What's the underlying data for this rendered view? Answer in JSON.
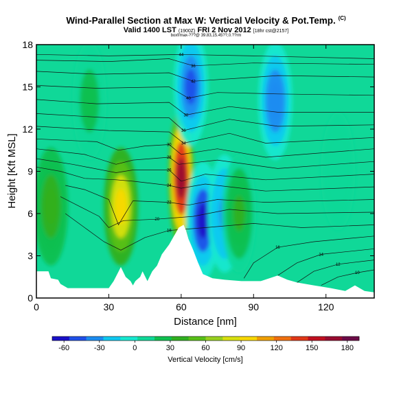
{
  "chart_data": {
    "type": "heatmap",
    "title": "Wind-Parallel Section at Max W: Vertical Velocity & Pot.Temp.",
    "title_mark": "(C)",
    "subtitle": "Valid 1400 LST",
    "subtitle_small_1": "(1900Z)",
    "subtitle_date": "FRI 2 Nov 2012",
    "subtitle_small_2": "[18hr cst@2157]",
    "credit": "boxf/max-???@ 39.83,15.45??,0.??rm",
    "xlabel": "Distance [nm]",
    "ylabel": "Height [Kft MSL]",
    "xlim": [
      0,
      140
    ],
    "ylim": [
      0,
      18
    ],
    "x_ticks": [
      0,
      30,
      60,
      90,
      120
    ],
    "y_ticks": [
      0,
      3,
      6,
      9,
      12,
      15,
      18
    ],
    "colorbar": {
      "label": "Vertical Velocity [cm/s]",
      "range": [
        -70,
        190
      ],
      "ticks": [
        -60,
        -30,
        0,
        30,
        60,
        90,
        120,
        150,
        180
      ],
      "colors": [
        "#1a10c8",
        "#2050e8",
        "#1c8cf0",
        "#10c8f0",
        "#18e8d0",
        "#10d898",
        "#10c050",
        "#30b020",
        "#58c018",
        "#98d020",
        "#d8e010",
        "#f8d800",
        "#f0a000",
        "#f07010",
        "#e03818",
        "#c01020",
        "#980c30",
        "#6c0c48"
      ]
    },
    "field_cells": [
      {
        "x": 6,
        "z": 6.5,
        "w": 40
      },
      {
        "x": 35,
        "z": 6.5,
        "w": 100
      },
      {
        "x": 60,
        "z": 8.5,
        "w": 175
      },
      {
        "x": 69,
        "z": 5.5,
        "w": -60
      },
      {
        "x": 78,
        "z": 6.0,
        "w": -35
      },
      {
        "x": 64,
        "z": 15.0,
        "w": -55
      },
      {
        "x": 84,
        "z": 6.0,
        "w": 35
      },
      {
        "x": 99,
        "z": 14.0,
        "w": -40
      },
      {
        "x": 22,
        "z": 14.0,
        "w": 20
      },
      {
        "x": 125,
        "z": 9.0,
        "w": 15
      }
    ],
    "terrain": [
      [
        0,
        1.9
      ],
      [
        5,
        1.9
      ],
      [
        6,
        1.4
      ],
      [
        9,
        1.3
      ],
      [
        10,
        1.0
      ],
      [
        13,
        0.7
      ],
      [
        20,
        0.7
      ],
      [
        30,
        0.7
      ],
      [
        32,
        1.2
      ],
      [
        35,
        2.2
      ],
      [
        37,
        1.5
      ],
      [
        39,
        1.2
      ],
      [
        40,
        0.9
      ],
      [
        41,
        1.2
      ],
      [
        43,
        1.5
      ],
      [
        44,
        1.9
      ],
      [
        46,
        1.2
      ],
      [
        48,
        1.9
      ],
      [
        50,
        2.3
      ],
      [
        52,
        3.1
      ],
      [
        55,
        3.8
      ],
      [
        57,
        4.4
      ],
      [
        59,
        5.0
      ],
      [
        61,
        5.2
      ],
      [
        62,
        4.8
      ],
      [
        63,
        4.2
      ],
      [
        65,
        3.4
      ],
      [
        67,
        2.5
      ],
      [
        69,
        1.7
      ],
      [
        73,
        1.4
      ],
      [
        78,
        1.3
      ],
      [
        85,
        1.2
      ],
      [
        93,
        1.2
      ],
      [
        100,
        1.6
      ],
      [
        104,
        1.3
      ],
      [
        108,
        1.1
      ],
      [
        115,
        0.9
      ],
      [
        122,
        0.7
      ],
      [
        128,
        0.5
      ],
      [
        132,
        0.9
      ],
      [
        136,
        0.5
      ],
      [
        140,
        0.4
      ]
    ],
    "isentropes": [
      {
        "label": "44",
        "pts": [
          [
            0,
            17.3
          ],
          [
            30,
            17.2
          ],
          [
            60,
            17.3
          ],
          [
            90,
            17.2
          ],
          [
            140,
            17.0
          ]
        ]
      },
      {
        "label": "36",
        "pts": [
          [
            0,
            16.9
          ],
          [
            30,
            16.8
          ],
          [
            55,
            17.0
          ],
          [
            65,
            16.5
          ],
          [
            90,
            16.7
          ],
          [
            140,
            16.6
          ]
        ]
      },
      {
        "label": "42",
        "pts": [
          [
            0,
            16.1
          ],
          [
            25,
            15.9
          ],
          [
            55,
            16.0
          ],
          [
            65,
            15.4
          ],
          [
            100,
            15.8
          ],
          [
            140,
            15.7
          ]
        ]
      },
      {
        "label": "40",
        "pts": [
          [
            0,
            15.1
          ],
          [
            25,
            14.9
          ],
          [
            55,
            15.0
          ],
          [
            63,
            14.2
          ],
          [
            75,
            14.6
          ],
          [
            100,
            14.5
          ],
          [
            140,
            14.4
          ]
        ]
      },
      {
        "label": "38",
        "pts": [
          [
            0,
            14.1
          ],
          [
            25,
            13.8
          ],
          [
            55,
            13.9
          ],
          [
            62,
            13.0
          ],
          [
            80,
            13.6
          ],
          [
            100,
            13.2
          ],
          [
            140,
            13.2
          ]
        ]
      },
      {
        "label": "36",
        "pts": [
          [
            0,
            13.1
          ],
          [
            30,
            12.8
          ],
          [
            55,
            12.8
          ],
          [
            61,
            11.9
          ],
          [
            80,
            12.7
          ],
          [
            100,
            12.2
          ],
          [
            140,
            12.3
          ]
        ]
      },
      {
        "label": "34",
        "pts": [
          [
            0,
            12.2
          ],
          [
            30,
            11.9
          ],
          [
            55,
            11.8
          ],
          [
            61,
            11.0
          ],
          [
            80,
            11.7
          ],
          [
            95,
            11.0
          ],
          [
            140,
            11.4
          ]
        ]
      },
      {
        "label": "30",
        "pts": [
          [
            0,
            11.3
          ],
          [
            25,
            11.1
          ],
          [
            34,
            10.5
          ],
          [
            45,
            10.8
          ],
          [
            55,
            10.9
          ],
          [
            60,
            10.2
          ],
          [
            75,
            10.6
          ],
          [
            95,
            10.0
          ],
          [
            140,
            10.6
          ]
        ]
      },
      {
        "label": "28",
        "pts": [
          [
            0,
            10.6
          ],
          [
            20,
            10.2
          ],
          [
            33,
            9.5
          ],
          [
            40,
            9.8
          ],
          [
            55,
            10.0
          ],
          [
            59,
            9.5
          ],
          [
            75,
            9.8
          ],
          [
            100,
            9.2
          ],
          [
            140,
            9.7
          ]
        ]
      },
      {
        "label": "26",
        "pts": [
          [
            0,
            9.9
          ],
          [
            15,
            9.5
          ],
          [
            33,
            8.9
          ],
          [
            40,
            9.1
          ],
          [
            55,
            9.1
          ],
          [
            60,
            8.3
          ],
          [
            70,
            8.8
          ],
          [
            95,
            8.4
          ],
          [
            140,
            8.8
          ]
        ]
      },
      {
        "label": "24",
        "pts": [
          [
            0,
            9.3
          ],
          [
            10,
            9.0
          ],
          [
            20,
            8.5
          ],
          [
            33,
            8.4
          ],
          [
            40,
            8.3
          ],
          [
            55,
            8.0
          ],
          [
            60,
            7.8
          ],
          [
            70,
            8.1
          ],
          [
            95,
            7.6
          ],
          [
            140,
            7.9
          ]
        ]
      },
      {
        "label": "22",
        "pts": [
          [
            12,
            8.0
          ],
          [
            20,
            7.7
          ],
          [
            30,
            7.0
          ],
          [
            34,
            5.2
          ],
          [
            40,
            6.9
          ],
          [
            55,
            6.8
          ],
          [
            63,
            6.6
          ],
          [
            75,
            7.0
          ],
          [
            95,
            6.8
          ],
          [
            140,
            7.0
          ]
        ]
      },
      {
        "label": "20",
        "pts": [
          [
            10,
            7.2
          ],
          [
            18,
            6.5
          ],
          [
            26,
            5.8
          ],
          [
            30,
            5.0
          ],
          [
            36,
            5.5
          ],
          [
            50,
            5.6
          ],
          [
            65,
            5.8
          ],
          [
            80,
            6.3
          ],
          [
            100,
            6.0
          ],
          [
            140,
            6.1
          ]
        ]
      },
      {
        "label": "18",
        "pts": [
          [
            12,
            6.0
          ],
          [
            20,
            5.0
          ],
          [
            28,
            4.0
          ],
          [
            35,
            3.4
          ],
          [
            45,
            4.3
          ],
          [
            55,
            4.8
          ],
          [
            70,
            5.0
          ],
          [
            90,
            5.3
          ],
          [
            110,
            5.0
          ],
          [
            140,
            5.2
          ]
        ]
      },
      {
        "label": "16",
        "pts": [
          [
            86,
            1.4
          ],
          [
            90,
            2.5
          ],
          [
            100,
            3.6
          ],
          [
            115,
            4.0
          ],
          [
            140,
            4.4
          ]
        ]
      },
      {
        "label": "14",
        "pts": [
          [
            100,
            1.6
          ],
          [
            108,
            2.5
          ],
          [
            118,
            3.1
          ],
          [
            140,
            3.5
          ]
        ]
      },
      {
        "label": "12",
        "pts": [
          [
            108,
            1.1
          ],
          [
            115,
            1.9
          ],
          [
            125,
            2.4
          ],
          [
            140,
            2.7
          ]
        ]
      },
      {
        "label": "10",
        "pts": [
          [
            118,
            0.9
          ],
          [
            125,
            1.5
          ],
          [
            133,
            1.8
          ],
          [
            140,
            2.0
          ]
        ]
      }
    ]
  }
}
